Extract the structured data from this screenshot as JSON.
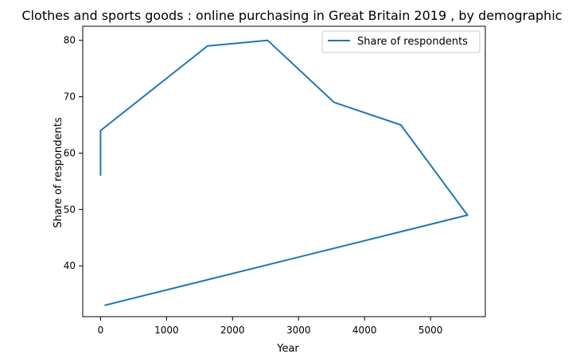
{
  "chart_data": {
    "type": "line",
    "title": "Clothes and sports goods : online purchasing in Great Britain 2019 , by demographic",
    "xlabel": "Year",
    "ylabel": "Share of respondents",
    "xlim": [
      -270,
      5830
    ],
    "ylim": [
      31,
      82.5
    ],
    "x_ticks": [
      0,
      1000,
      2000,
      3000,
      4000,
      5000
    ],
    "y_ticks": [
      40,
      50,
      60,
      70,
      80
    ],
    "x_tick_labels": [
      "0",
      "1000",
      "2000",
      "3000",
      "4000",
      "5000"
    ],
    "y_tick_labels": [
      "40",
      "50",
      "60",
      "70",
      "80"
    ],
    "grid": false,
    "legend_position": "top-right",
    "series": [
      {
        "name": "Share of respondents",
        "color": "#1f77b4",
        "x": [
          0,
          0,
          1620,
          2530,
          3540,
          4550,
          5560,
          60
        ],
        "y": [
          56,
          64,
          79,
          80,
          69,
          65,
          49,
          33
        ]
      }
    ]
  }
}
